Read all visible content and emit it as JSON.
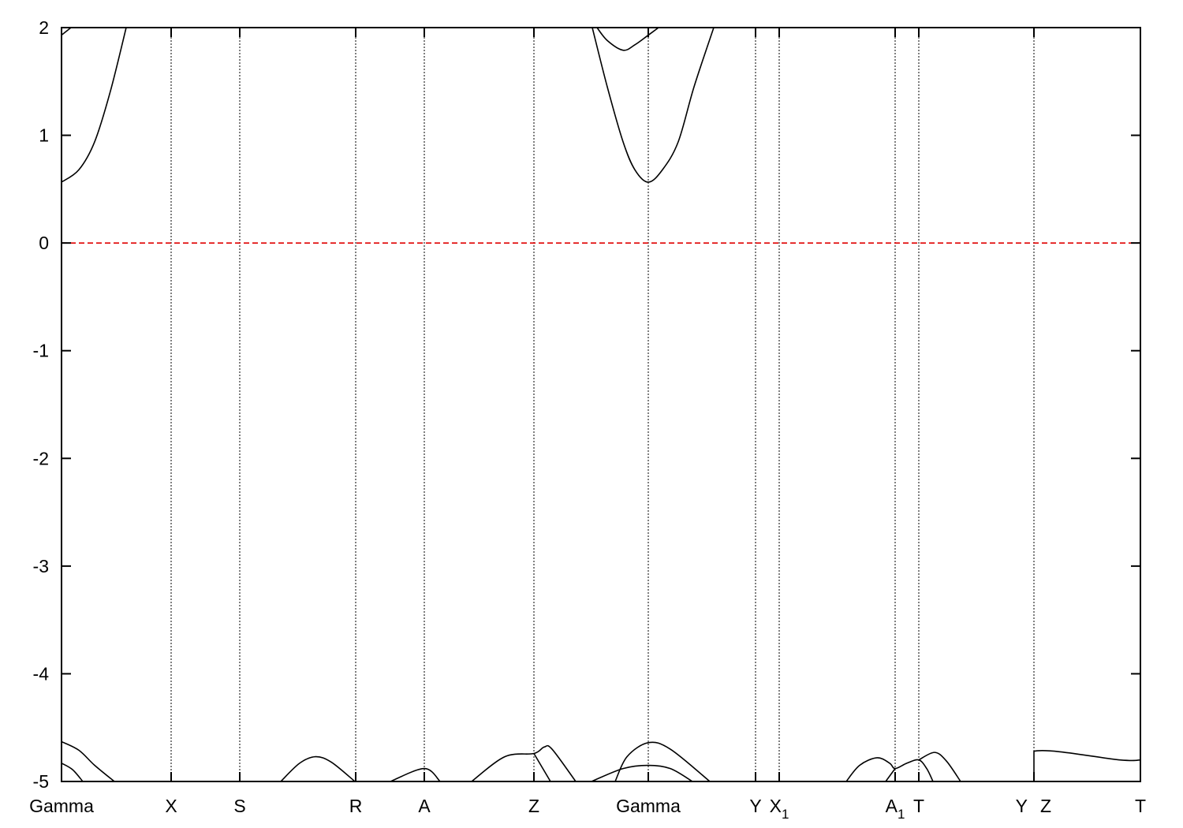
{
  "chart_data": {
    "type": "line",
    "title": "",
    "xlabel": "",
    "ylabel": "",
    "xlim": [
      0,
      13.68
    ],
    "ylim": [
      -5,
      2
    ],
    "yticks": [
      -5,
      -4,
      -3,
      -2,
      -1,
      0,
      1,
      2
    ],
    "ytick_labels": [
      "-5",
      "-4",
      "-3",
      "-2",
      "-1",
      "0",
      "1",
      "2"
    ],
    "kpoints": [
      {
        "label": "Gamma",
        "sub": "",
        "k": 0
      },
      {
        "label": "X",
        "sub": "",
        "k": 1.39
      },
      {
        "label": "S",
        "sub": "",
        "k": 2.26
      },
      {
        "label": "R",
        "sub": "",
        "k": 3.73
      },
      {
        "label": "A",
        "sub": "",
        "k": 4.6
      },
      {
        "label": "Z",
        "sub": "",
        "k": 5.99
      },
      {
        "label": "Gamma",
        "sub": "",
        "k": 7.44
      },
      {
        "label": "Y",
        "sub": "",
        "k": 8.8
      },
      {
        "label": "X",
        "sub": "1",
        "k": 9.1
      },
      {
        "label": "A",
        "sub": "1",
        "k": 10.57
      },
      {
        "label": "T",
        "sub": "",
        "k": 10.87
      },
      {
        "label": "Y",
        "sub": "",
        "k": 12.33,
        "side": "left"
      },
      {
        "label": "Z",
        "sub": "",
        "k": 12.33,
        "side": "right"
      },
      {
        "label": "T",
        "sub": "",
        "k": 13.68
      }
    ],
    "fermi_level": 0,
    "colors": {
      "bands": "#000000",
      "fermi": "#e00000",
      "kline": "#000000"
    },
    "grid": false,
    "bands": [
      [
        [
          0,
          0.565
        ],
        [
          0.22,
          0.68
        ],
        [
          0.42,
          0.94
        ],
        [
          0.62,
          1.41
        ],
        [
          0.82,
          2
        ]
      ],
      [
        [
          0,
          1.93
        ],
        [
          0.12,
          2
        ]
      ],
      [
        [
          6.73,
          2
        ],
        [
          6.92,
          1.45
        ],
        [
          7.12,
          0.94
        ],
        [
          7.27,
          0.68
        ],
        [
          7.44,
          0.565
        ],
        [
          7.62,
          0.68
        ],
        [
          7.82,
          0.94
        ],
        [
          8.02,
          1.45
        ],
        [
          8.27,
          2
        ]
      ],
      [
        [
          6.79,
          2
        ],
        [
          6.92,
          1.88
        ],
        [
          7.12,
          1.79
        ],
        [
          7.27,
          1.84
        ],
        [
          7.44,
          1.93
        ],
        [
          7.57,
          2
        ]
      ],
      [
        [
          0,
          -4.63
        ],
        [
          0.22,
          -4.71
        ],
        [
          0.42,
          -4.85
        ],
        [
          0.67,
          -5
        ]
      ],
      [
        [
          0,
          -4.83
        ],
        [
          0.14,
          -4.89
        ],
        [
          0.27,
          -5
        ]
      ],
      [
        [
          2.78,
          -5
        ],
        [
          3.02,
          -4.83
        ],
        [
          3.22,
          -4.77
        ],
        [
          3.42,
          -4.82
        ],
        [
          3.72,
          -5
        ]
      ],
      [
        [
          4.17,
          -5
        ],
        [
          4.6,
          -4.88
        ],
        [
          4.8,
          -5
        ]
      ],
      [
        [
          5.2,
          -5
        ],
        [
          5.62,
          -4.77
        ],
        [
          5.99,
          -4.74
        ],
        [
          6.12,
          -4.68
        ],
        [
          6.22,
          -4.7
        ],
        [
          6.52,
          -5
        ]
      ],
      [
        [
          5.99,
          -4.74
        ],
        [
          6.2,
          -5
        ]
      ],
      [
        [
          6.72,
          -5
        ],
        [
          7.12,
          -4.88
        ],
        [
          7.44,
          -4.85
        ],
        [
          7.72,
          -4.88
        ],
        [
          8.0,
          -5
        ]
      ],
      [
        [
          7.02,
          -5
        ],
        [
          7.17,
          -4.77
        ],
        [
          7.44,
          -4.64
        ],
        [
          7.72,
          -4.7
        ],
        [
          8.22,
          -5
        ]
      ],
      [
        [
          9.95,
          -5
        ],
        [
          10.12,
          -4.85
        ],
        [
          10.34,
          -4.78
        ],
        [
          10.5,
          -4.83
        ],
        [
          10.57,
          -4.88
        ],
        [
          10.72,
          -4.83
        ],
        [
          10.87,
          -4.8
        ],
        [
          10.97,
          -4.88
        ],
        [
          11.05,
          -5
        ]
      ],
      [
        [
          10.45,
          -5
        ],
        [
          10.57,
          -4.88
        ]
      ],
      [
        [
          10.87,
          -4.8
        ],
        [
          11.07,
          -4.73
        ],
        [
          11.22,
          -4.81
        ],
        [
          11.4,
          -5
        ]
      ],
      [
        [
          12.33,
          -5
        ],
        [
          12.33,
          -4.72
        ],
        [
          13.42,
          -4.8
        ],
        [
          13.68,
          -4.8
        ]
      ]
    ]
  }
}
